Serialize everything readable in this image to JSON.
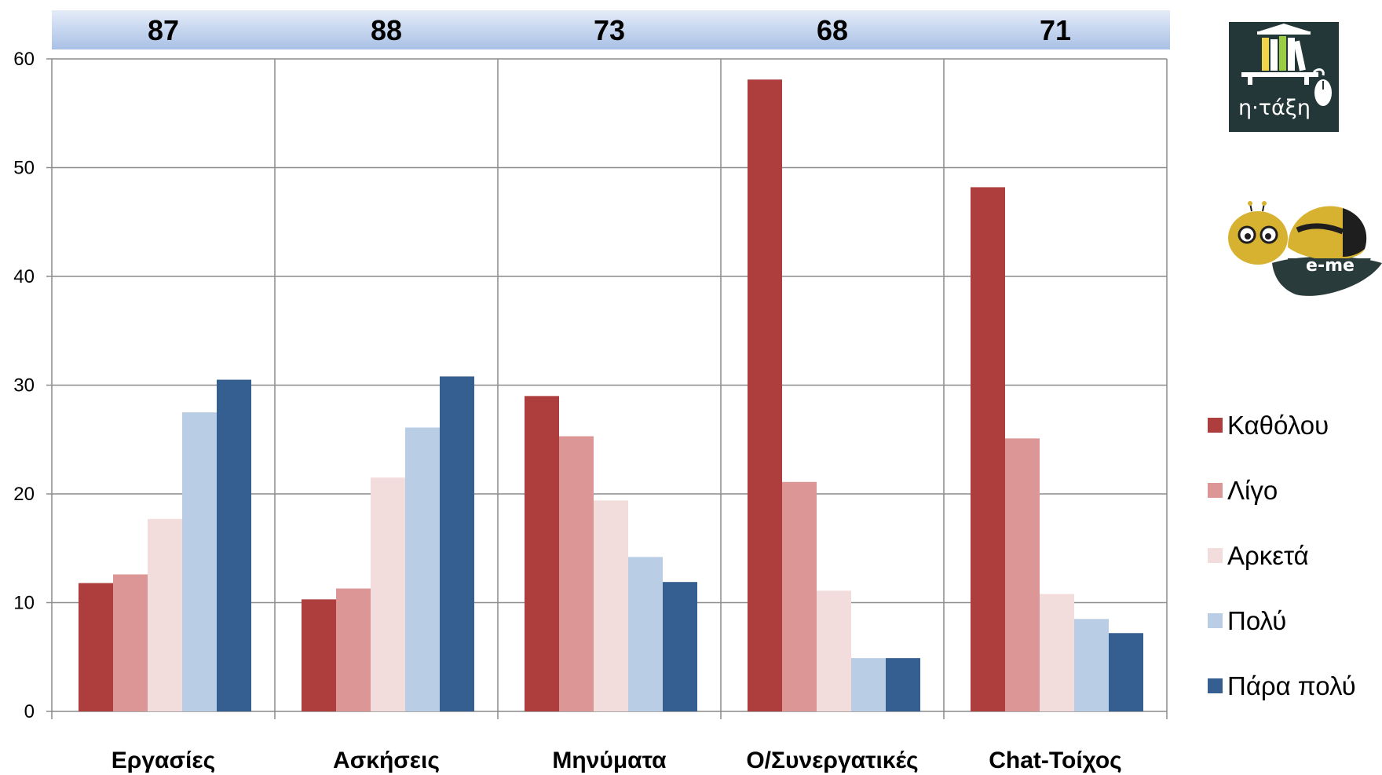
{
  "chart_data": {
    "type": "bar",
    "categories": [
      "Εργασίες",
      "Ασκήσεις",
      "Μηνύματα",
      "Ο/Συνεργατικές",
      "Chat-Τοίχος"
    ],
    "header_values": [
      "87",
      "88",
      "73",
      "68",
      "71"
    ],
    "series": [
      {
        "name": "Καθόλου",
        "color": "#AE3E3D",
        "values": [
          11.8,
          10.3,
          29.0,
          58.1,
          48.2
        ]
      },
      {
        "name": "Λίγο",
        "color": "#DC9696",
        "values": [
          12.6,
          11.3,
          25.3,
          21.1,
          25.1
        ]
      },
      {
        "name": "Αρκετά",
        "color": "#F3DCDC",
        "values": [
          17.7,
          21.5,
          19.4,
          11.1,
          10.8
        ]
      },
      {
        "name": "Πολύ",
        "color": "#B9CDE5",
        "values": [
          27.5,
          26.1,
          14.2,
          4.9,
          8.5
        ]
      },
      {
        "name": "Πάρα πολύ",
        "color": "#355F91",
        "values": [
          30.5,
          30.8,
          11.9,
          4.9,
          7.2
        ]
      }
    ],
    "yticks": [
      "0",
      "10",
      "20",
      "30",
      "40",
      "50",
      "60"
    ],
    "ylim": [
      0,
      60
    ],
    "grid": true,
    "legend_position": "right"
  },
  "logos": {
    "taxi_text": "η·τάξη",
    "eme_text": "e-me"
  }
}
